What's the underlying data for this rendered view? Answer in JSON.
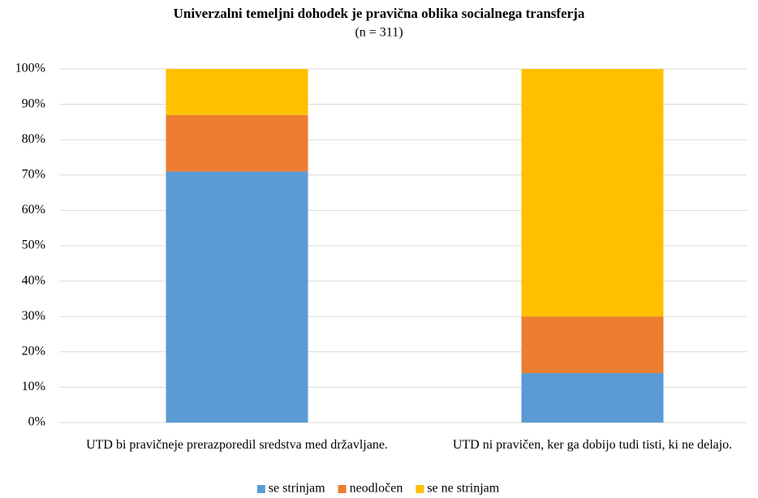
{
  "chart_data": {
    "type": "stacked_bar",
    "title": "Univerzalni temeljni dohodek je pravična oblika socialnega transferja",
    "subtitle": "(n = 311)",
    "categories": [
      "UTD bi pravičneje prerazporedil sredstva med državljane.",
      "UTD ni pravičen, ker ga dobijo tudi tisti, ki ne delajo."
    ],
    "series": [
      {
        "name": "se strinjam",
        "color": "#5b9bd5",
        "values": [
          71,
          14
        ]
      },
      {
        "name": "neodločen",
        "color": "#ed7d31",
        "values": [
          16,
          16
        ]
      },
      {
        "name": "se ne strinjam",
        "color": "#ffc000",
        "values": [
          13,
          70
        ]
      }
    ],
    "ylim": [
      0,
      100
    ],
    "yticks": [
      {
        "value": 0,
        "label": "0%"
      },
      {
        "value": 10,
        "label": "10%"
      },
      {
        "value": 20,
        "label": "20%"
      },
      {
        "value": 30,
        "label": "30%"
      },
      {
        "value": 40,
        "label": "40%"
      },
      {
        "value": 50,
        "label": "50%"
      },
      {
        "value": 60,
        "label": "60%"
      },
      {
        "value": 70,
        "label": "70%"
      },
      {
        "value": 80,
        "label": "80%"
      },
      {
        "value": 90,
        "label": "90%"
      },
      {
        "value": 100,
        "label": "100%"
      }
    ],
    "grid": true,
    "legend": "bottom"
  }
}
